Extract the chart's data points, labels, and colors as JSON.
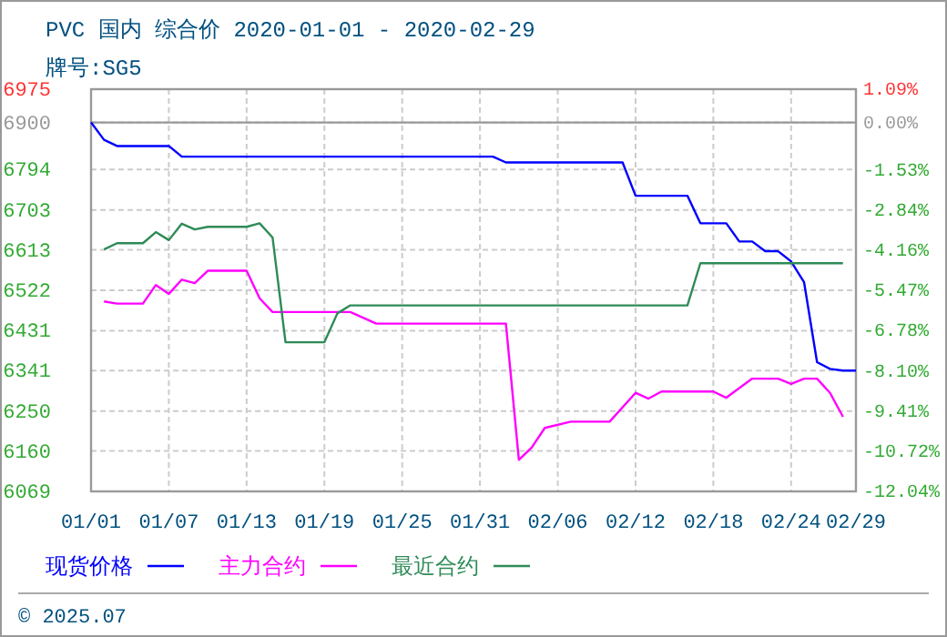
{
  "chart_data": {
    "type": "line",
    "title": "PVC 国内 综合价 2020-01-01 - 2020-02-29",
    "subtitle": "牌号:SG5",
    "annotations": [
      "© 2025.07"
    ],
    "xlim": [
      "2020-01-01",
      "2020-02-29"
    ],
    "xticks": [
      {
        "value": "2020-01-01",
        "label": "01/01"
      },
      {
        "value": "2020-01-07",
        "label": "01/07"
      },
      {
        "value": "2020-01-13",
        "label": "01/13"
      },
      {
        "value": "2020-01-19",
        "label": "01/19"
      },
      {
        "value": "2020-01-25",
        "label": "01/25"
      },
      {
        "value": "2020-01-31",
        "label": "01/31"
      },
      {
        "value": "2020-02-06",
        "label": "02/06"
      },
      {
        "value": "2020-02-12",
        "label": "02/12"
      },
      {
        "value": "2020-02-18",
        "label": "02/18"
      },
      {
        "value": "2020-02-24",
        "label": "02/24"
      },
      {
        "value": "2020-02-29",
        "label": "02/29"
      }
    ],
    "ylim": [
      6069,
      6975
    ],
    "yticks": [
      6975,
      6900,
      6794,
      6703,
      6613,
      6522,
      6431,
      6341,
      6250,
      6160,
      6069
    ],
    "y2lim": [
      -12.04,
      1.09
    ],
    "y2ticks": [
      {
        "value": 1.09,
        "label": "1.09%"
      },
      {
        "value": 0,
        "label": "0.00%"
      },
      {
        "value": -1.53,
        "label": "-1.53%"
      },
      {
        "value": -2.84,
        "label": "-2.84%"
      },
      {
        "value": -4.16,
        "label": "-4.16%"
      },
      {
        "value": -5.47,
        "label": "-5.47%"
      },
      {
        "value": -6.78,
        "label": "-6.78%"
      },
      {
        "value": -8.1,
        "label": "-8.10%"
      },
      {
        "value": -9.41,
        "label": "-9.41%"
      },
      {
        "value": -10.72,
        "label": "-10.72%"
      },
      {
        "value": -12.04,
        "label": "-12.04%"
      }
    ],
    "ref_lines": [
      {
        "axis": "y",
        "value": 6900,
        "color": "#999999"
      }
    ],
    "grid": true,
    "legend": "bottom",
    "line_style": "solid",
    "marker": "none",
    "series": [
      {
        "name": "现货价格",
        "color": "#0000ff",
        "x": [
          "2020-01-01",
          "2020-01-02",
          "2020-01-03",
          "2020-01-07",
          "2020-01-08",
          "2020-02-01",
          "2020-02-02",
          "2020-02-11",
          "2020-02-12",
          "2020-02-16",
          "2020-02-17",
          "2020-02-19",
          "2020-02-20",
          "2020-02-21",
          "2020-02-22",
          "2020-02-23",
          "2020-02-24",
          "2020-02-25",
          "2020-02-26",
          "2020-02-27",
          "2020-02-28",
          "2020-02-29"
        ],
        "values": [
          6900,
          6861,
          6847,
          6847,
          6823,
          6823,
          6810,
          6810,
          6735,
          6735,
          6673,
          6673,
          6632,
          6632,
          6610,
          6610,
          6587,
          6540,
          6360,
          6345,
          6341,
          6341
        ]
      },
      {
        "name": "主力合约",
        "color": "#ff00ff",
        "x": [
          "2020-01-02",
          "2020-01-03",
          "2020-01-05",
          "2020-01-06",
          "2020-01-07",
          "2020-01-08",
          "2020-01-09",
          "2020-01-10",
          "2020-01-13",
          "2020-01-14",
          "2020-01-15",
          "2020-01-21",
          "2020-01-23",
          "2020-02-02",
          "2020-02-03",
          "2020-02-04",
          "2020-02-05",
          "2020-02-07",
          "2020-02-10",
          "2020-02-12",
          "2020-02-13",
          "2020-02-14",
          "2020-02-18",
          "2020-02-19",
          "2020-02-21",
          "2020-02-23",
          "2020-02-24",
          "2020-02-25",
          "2020-02-26",
          "2020-02-27",
          "2020-02-28"
        ],
        "values": [
          6497,
          6492,
          6492,
          6534,
          6514,
          6546,
          6538,
          6566,
          6566,
          6504,
          6473,
          6473,
          6447,
          6447,
          6140,
          6168,
          6212,
          6226,
          6226,
          6291,
          6278,
          6294,
          6294,
          6280,
          6323,
          6323,
          6311,
          6323,
          6323,
          6291,
          6237
        ]
      },
      {
        "name": "最近合约",
        "color": "#2e8b57",
        "x": [
          "2020-01-02",
          "2020-01-03",
          "2020-01-05",
          "2020-01-06",
          "2020-01-07",
          "2020-01-08",
          "2020-01-09",
          "2020-01-10",
          "2020-01-13",
          "2020-01-14",
          "2020-01-15",
          "2020-01-16",
          "2020-01-19",
          "2020-01-20",
          "2020-01-21",
          "2020-02-16",
          "2020-02-17",
          "2020-02-28"
        ],
        "values": [
          6614,
          6628,
          6628,
          6653,
          6635,
          6672,
          6659,
          6665,
          6665,
          6673,
          6641,
          6405,
          6405,
          6470,
          6488,
          6488,
          6583,
          6583
        ]
      }
    ]
  }
}
